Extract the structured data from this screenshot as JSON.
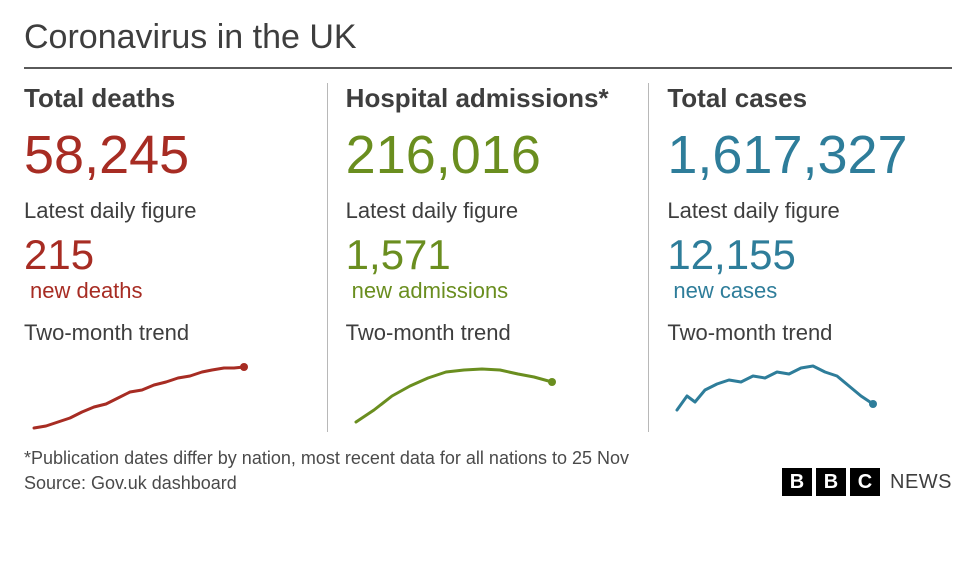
{
  "title": "Coronavirus in the UK",
  "panels": [
    {
      "heading": "Total deaths",
      "total": "58,245",
      "daily_label": "Latest daily figure",
      "daily_value": "215",
      "daily_caption": "new deaths",
      "trend_label": "Two-month trend",
      "color": "#a72c23",
      "spark": {
        "points": [
          [
            0,
            76
          ],
          [
            12,
            74
          ],
          [
            24,
            70
          ],
          [
            36,
            66
          ],
          [
            48,
            60
          ],
          [
            60,
            55
          ],
          [
            72,
            52
          ],
          [
            84,
            46
          ],
          [
            96,
            40
          ],
          [
            108,
            38
          ],
          [
            120,
            33
          ],
          [
            132,
            30
          ],
          [
            144,
            26
          ],
          [
            156,
            24
          ],
          [
            168,
            20
          ],
          [
            178,
            18
          ],
          [
            190,
            16
          ],
          [
            200,
            16
          ],
          [
            210,
            15
          ]
        ],
        "end_marker": true,
        "stroke_width": 3,
        "marker_r": 4
      }
    },
    {
      "heading": "Hospital admissions*",
      "total": "216,016",
      "daily_label": "Latest daily figure",
      "daily_value": "1,571",
      "daily_caption": "new admissions",
      "trend_label": "Two-month trend",
      "color": "#6a8e1f",
      "spark": {
        "points": [
          [
            0,
            70
          ],
          [
            18,
            58
          ],
          [
            36,
            44
          ],
          [
            54,
            34
          ],
          [
            72,
            26
          ],
          [
            90,
            20
          ],
          [
            108,
            18
          ],
          [
            126,
            17
          ],
          [
            144,
            18
          ],
          [
            162,
            22
          ],
          [
            178,
            25
          ],
          [
            196,
            30
          ]
        ],
        "end_marker": true,
        "stroke_width": 3,
        "marker_r": 4
      }
    },
    {
      "heading": "Total cases",
      "total": "1,617,327",
      "daily_label": "Latest daily figure",
      "daily_value": "12,155",
      "daily_caption": "new cases",
      "trend_label": "Two-month trend",
      "color": "#2e7d9a",
      "spark": {
        "points": [
          [
            0,
            58
          ],
          [
            10,
            44
          ],
          [
            18,
            50
          ],
          [
            28,
            38
          ],
          [
            40,
            32
          ],
          [
            52,
            28
          ],
          [
            64,
            30
          ],
          [
            76,
            24
          ],
          [
            88,
            26
          ],
          [
            100,
            20
          ],
          [
            112,
            22
          ],
          [
            124,
            16
          ],
          [
            136,
            14
          ],
          [
            148,
            20
          ],
          [
            160,
            24
          ],
          [
            172,
            34
          ],
          [
            184,
            44
          ],
          [
            196,
            52
          ]
        ],
        "end_marker": true,
        "stroke_width": 3,
        "marker_r": 4
      }
    }
  ],
  "footer": {
    "note": "*Publication dates differ by nation, most recent data for all nations to 25 Nov",
    "source": "Source: Gov.uk dashboard",
    "logo": {
      "letters": [
        "B",
        "B",
        "C"
      ],
      "word": "NEWS"
    }
  },
  "style": {
    "background": "#ffffff",
    "text_color": "#3e3e3e",
    "rule_color": "#5a5a5a",
    "divider_color": "#b8b8b8",
    "title_fontsize": 34,
    "heading_fontsize": 26,
    "big_number_fontsize": 54,
    "daily_number_fontsize": 42,
    "body_fontsize": 22,
    "footer_fontsize": 18
  }
}
